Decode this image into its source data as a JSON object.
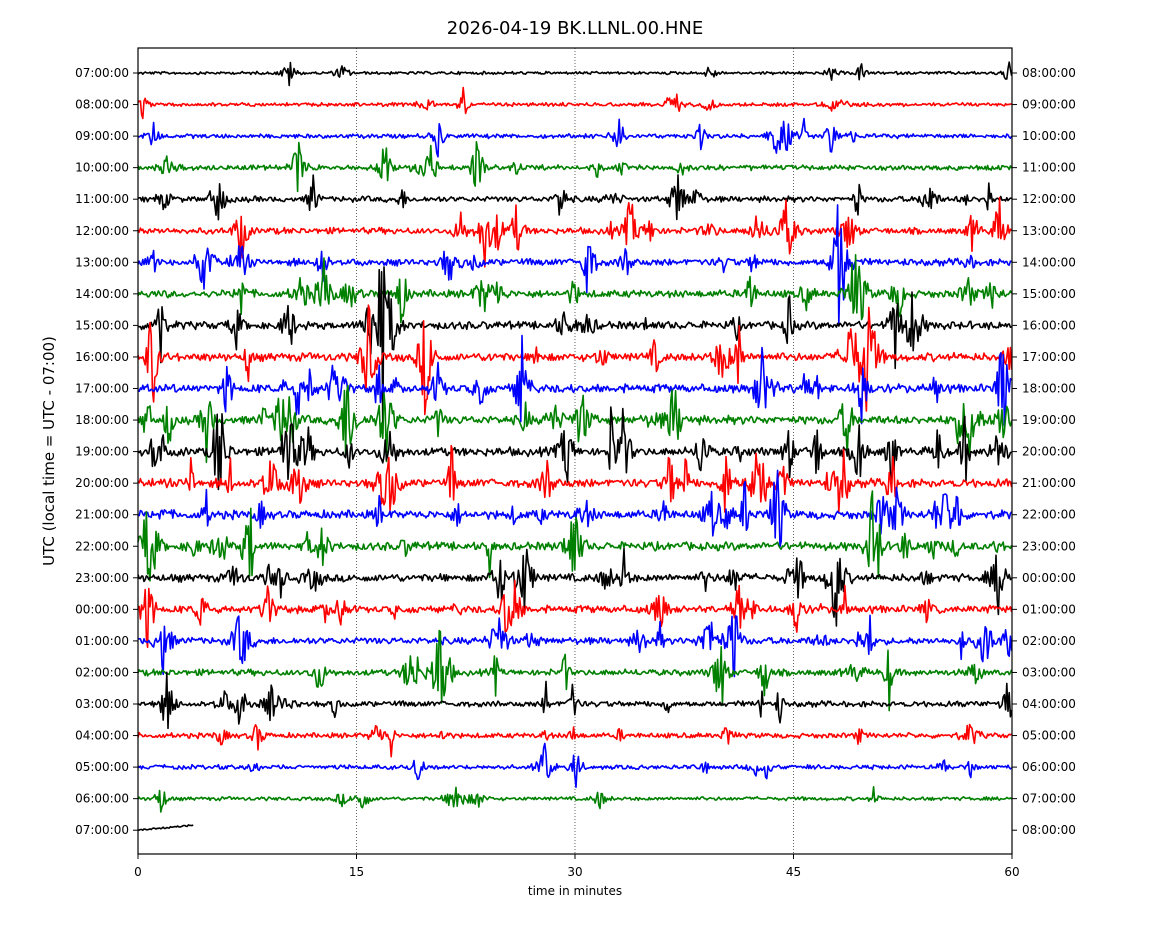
{
  "chart_data": {
    "type": "line",
    "title": "2026-04-19 BK.LLNL.00.HNE",
    "xlabel": "time in minutes",
    "ylabel": "UTC (local time = UTC - 07:00)",
    "xlim": [
      0,
      60
    ],
    "x_ticks": [
      "0",
      "15",
      "30",
      "45",
      "60"
    ],
    "grid": "vertical dotted at 15, 30, 45",
    "left_labels": [
      "07:00:00",
      "08:00:00",
      "09:00:00",
      "10:00:00",
      "11:00:00",
      "12:00:00",
      "13:00:00",
      "14:00:00",
      "15:00:00",
      "16:00:00",
      "17:00:00",
      "18:00:00",
      "19:00:00",
      "20:00:00",
      "21:00:00",
      "22:00:00",
      "23:00:00",
      "00:00:00",
      "01:00:00",
      "02:00:00",
      "03:00:00",
      "04:00:00",
      "05:00:00",
      "06:00:00",
      "07:00:00"
    ],
    "right_labels": [
      "08:00:00",
      "09:00:00",
      "10:00:00",
      "11:00:00",
      "12:00:00",
      "13:00:00",
      "14:00:00",
      "15:00:00",
      "16:00:00",
      "17:00:00",
      "18:00:00",
      "19:00:00",
      "20:00:00",
      "21:00:00",
      "22:00:00",
      "23:00:00",
      "00:00:00",
      "01:00:00",
      "02:00:00",
      "03:00:00",
      "04:00:00",
      "05:00:00",
      "06:00:00",
      "07:00:00",
      "08:00:00"
    ],
    "trace_colors": [
      "#000000",
      "#ff0000",
      "#0000ff",
      "#008000"
    ],
    "last_trace_end_minute": 3.8
  }
}
